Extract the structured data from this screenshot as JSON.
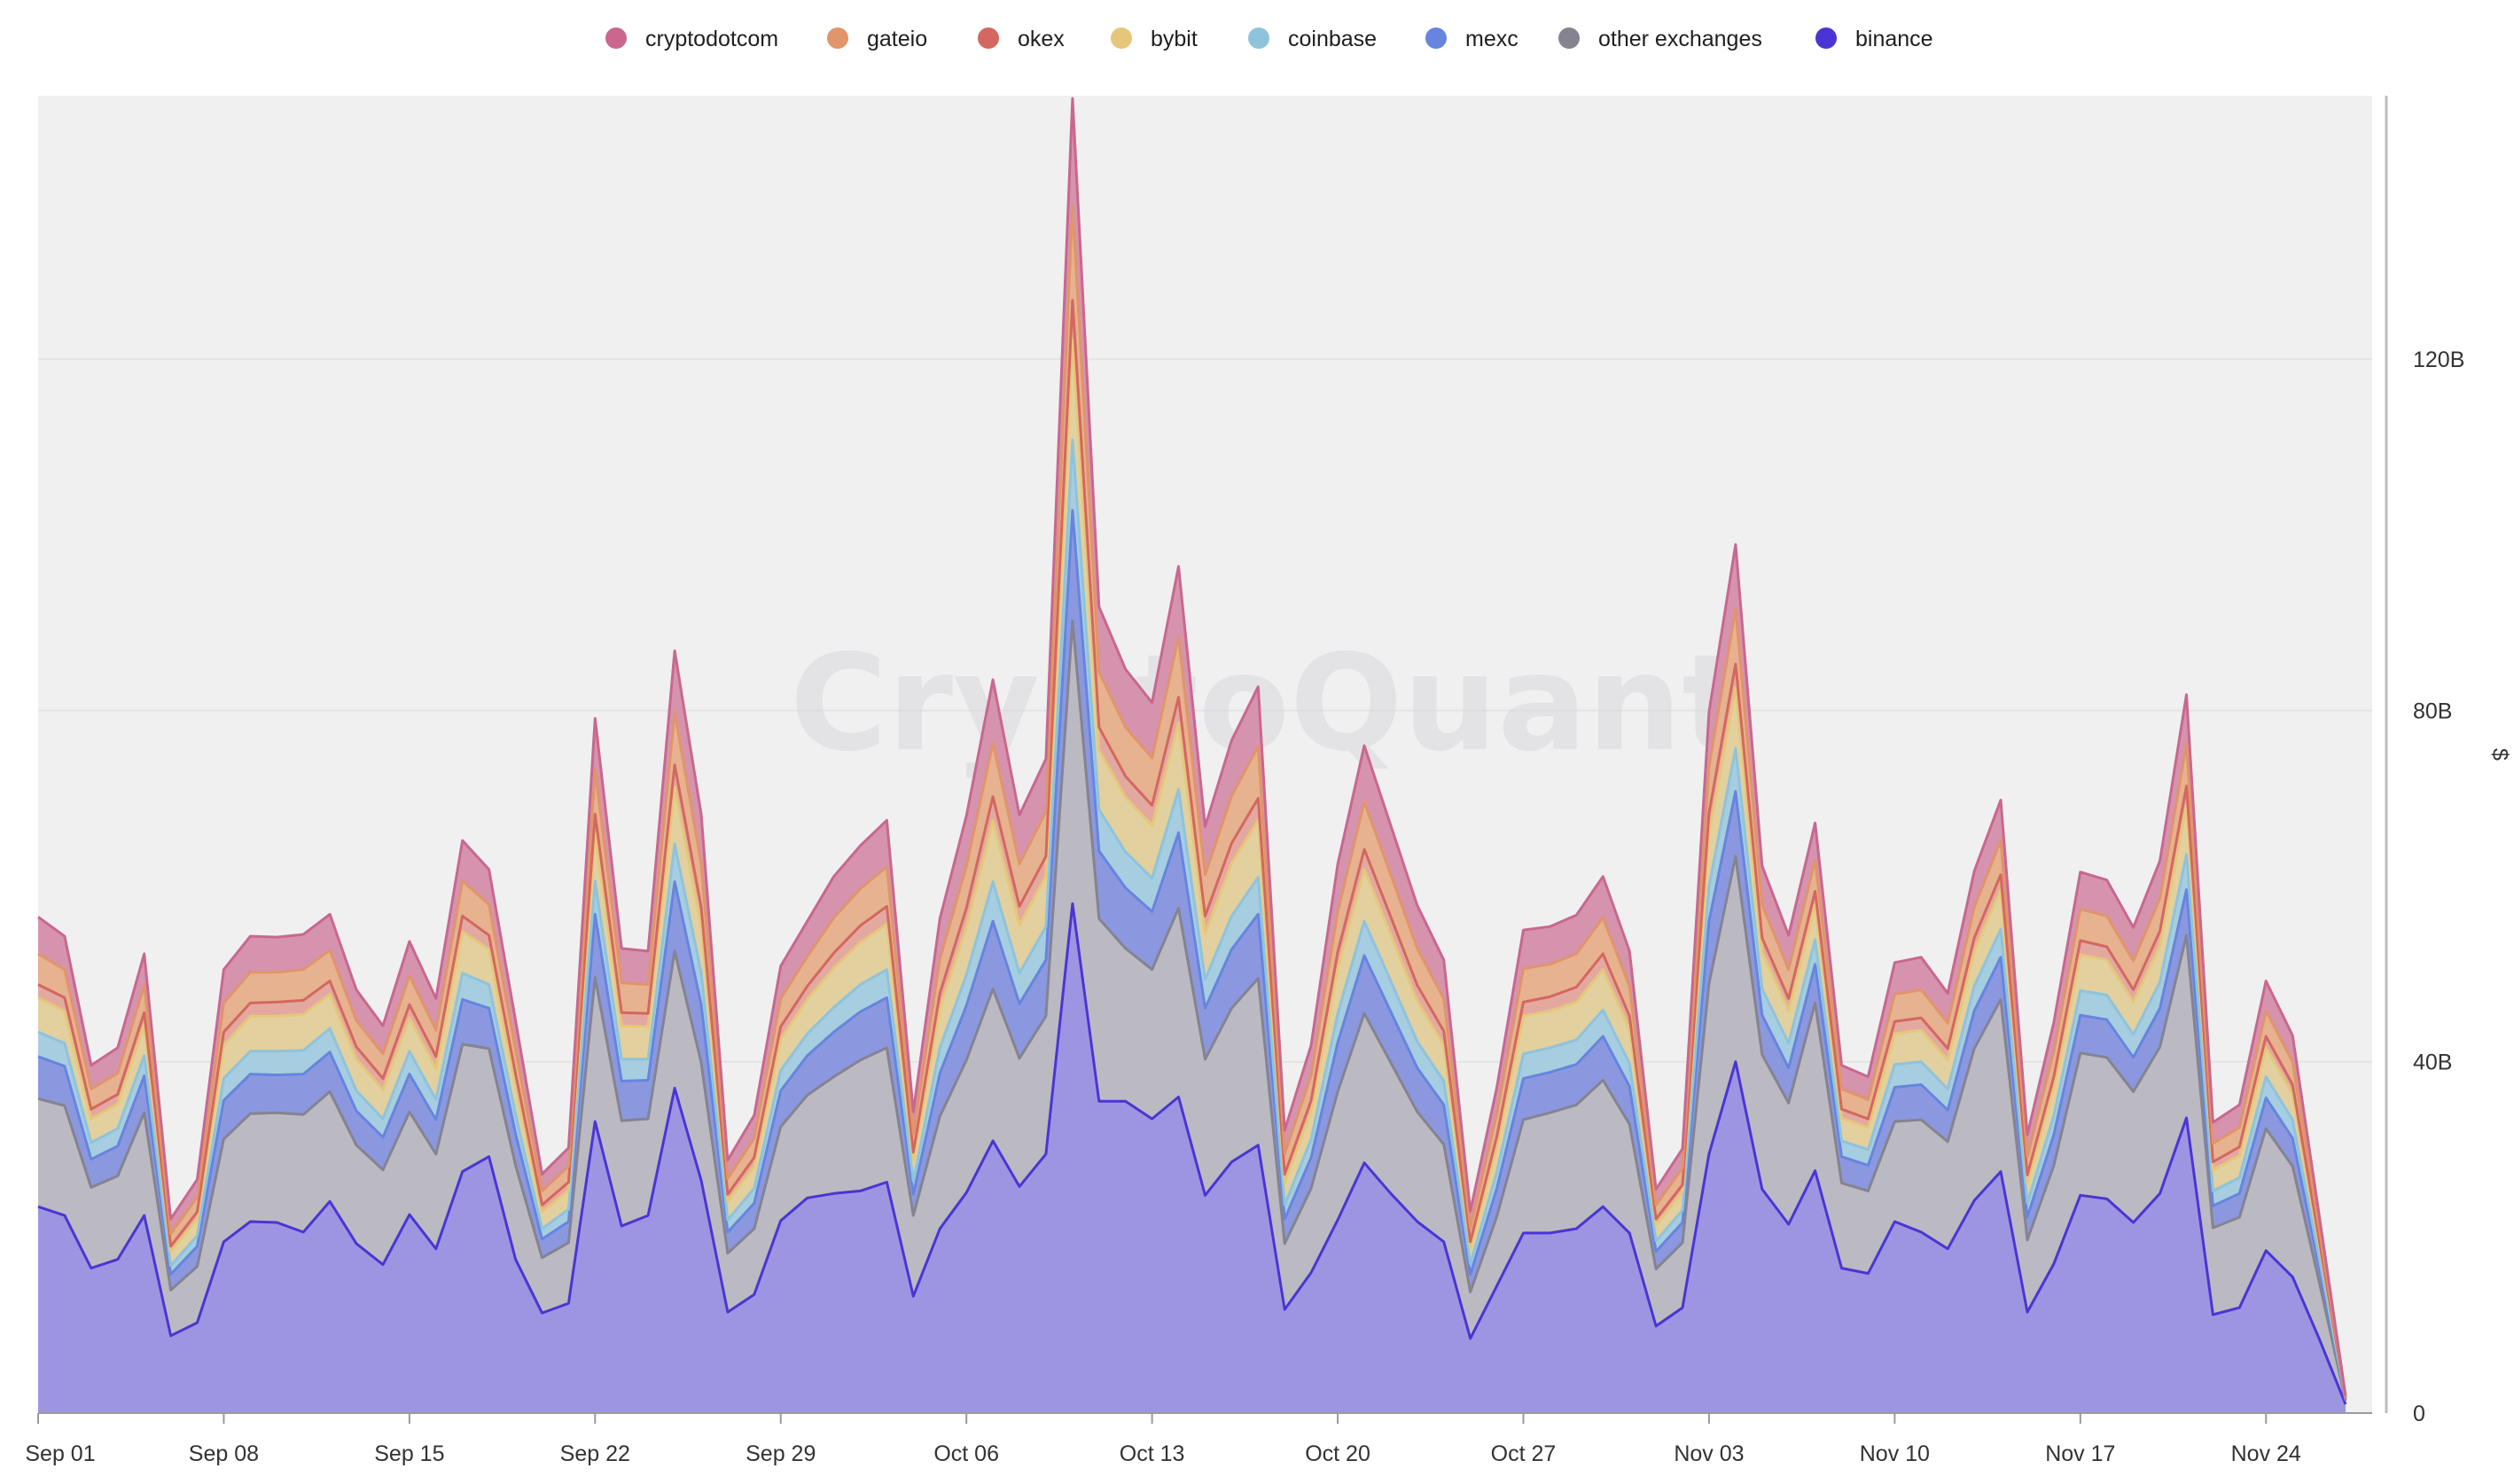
{
  "chart_data": {
    "type": "area",
    "stacked": true,
    "watermark": "CryptoQuant",
    "ylabel": "$",
    "ylim": [
      0,
      150
    ],
    "y_ticks": [
      {
        "value": 0,
        "label": "0"
      },
      {
        "value": 40,
        "label": "40B"
      },
      {
        "value": 80,
        "label": "80B"
      },
      {
        "value": 120,
        "label": "120B"
      }
    ],
    "x_ticks": [
      {
        "index": 0,
        "label": "Sep 01"
      },
      {
        "index": 7,
        "label": "Sep 08"
      },
      {
        "index": 14,
        "label": "Sep 15"
      },
      {
        "index": 21,
        "label": "Sep 22"
      },
      {
        "index": 28,
        "label": "Sep 29"
      },
      {
        "index": 35,
        "label": "Oct 06"
      },
      {
        "index": 42,
        "label": "Oct 13"
      },
      {
        "index": 49,
        "label": "Oct 20"
      },
      {
        "index": 56,
        "label": "Oct 27"
      },
      {
        "index": 63,
        "label": "Nov 03"
      },
      {
        "index": 70,
        "label": "Nov 10"
      },
      {
        "index": 77,
        "label": "Nov 17"
      },
      {
        "index": 84,
        "label": "Nov 24"
      }
    ],
    "num_points": 88,
    "legend": [
      {
        "name": "cryptodotcom",
        "color": "#c9678f"
      },
      {
        "name": "gateio",
        "color": "#e0956a"
      },
      {
        "name": "okex",
        "color": "#d4675f"
      },
      {
        "name": "bybit",
        "color": "#e6c77a"
      },
      {
        "name": "coinbase",
        "color": "#8ec3dc"
      },
      {
        "name": "mexc",
        "color": "#6585de"
      },
      {
        "name": "other exchanges",
        "color": "#85838f"
      },
      {
        "name": "binance",
        "color": "#4a35d4"
      }
    ],
    "stack_order": [
      "binance",
      "other exchanges",
      "mexc",
      "coinbase",
      "bybit",
      "okex",
      "gateio",
      "cryptodotcom"
    ],
    "series": [
      {
        "name": "binance",
        "color": "#4a35d4",
        "fill": "#9e95e2",
        "values": [
          23.5,
          22.5,
          16.5,
          17.5,
          22.5,
          8.8,
          10.3,
          19.5,
          21.8,
          21.7,
          20.6,
          24.1,
          19.3,
          16.9,
          22.6,
          18.7,
          27.5,
          29.2,
          17.5,
          11.4,
          12.5,
          33.2,
          21.3,
          22.5,
          37,
          26.5,
          11.5,
          13.5,
          21.9,
          24.5,
          25,
          25.3,
          26.3,
          13.3,
          21,
          25.1,
          31,
          25.8,
          29.5,
          58,
          35.5,
          35.5,
          33.5,
          36,
          24.8,
          28.6,
          30.5,
          11.8,
          16,
          22,
          28.5,
          25,
          21.8,
          19.5,
          8.5,
          14.5,
          20.5,
          20.5,
          21,
          23.5,
          20.5,
          9.9,
          12,
          29.5,
          40,
          25.5,
          21.5,
          27.6,
          16.5,
          15.9,
          21.8,
          20.6,
          18.7,
          24.2,
          27.5,
          11.5,
          17,
          24.8,
          24.4,
          21.7,
          25,
          33.6,
          11.2,
          12,
          18.5,
          15.5,
          8.5,
          1
        ]
      },
      {
        "name": "other exchanges",
        "color": "#85838f",
        "fill": "#bbb9c2",
        "values": [
          12.3,
          12.5,
          9.2,
          9.5,
          11.7,
          5.2,
          6.4,
          11.7,
          12.3,
          12.5,
          13.4,
          12.5,
          11.2,
          10.8,
          11.7,
          10.8,
          14.5,
          12.3,
          10.7,
          6.3,
          6.9,
          16.4,
          12,
          11,
          15.6,
          13.4,
          6.7,
          7.5,
          10.7,
          11.7,
          13.3,
          14.9,
          15.3,
          9.2,
          12.8,
          15.1,
          17.3,
          14.6,
          15.7,
          32.2,
          20.8,
          17.4,
          17,
          21.5,
          15.5,
          17.5,
          19,
          7.5,
          9.6,
          14.6,
          17,
          14.9,
          12.5,
          11.1,
          5.3,
          7.9,
          12.9,
          13.7,
          14.1,
          14.4,
          12.4,
          6.5,
          7.4,
          19.4,
          23.4,
          15.3,
          13.8,
          19.1,
          9.7,
          9.4,
          11.4,
          12.8,
          12.2,
          17.3,
          19.6,
          8.2,
          11.2,
          16.2,
          16.1,
          14.9,
          16.7,
          20.8,
          9.9,
          10.3,
          13.9,
          12.6,
          6.5,
          0.4
        ]
      },
      {
        "name": "mexc",
        "color": "#6585de",
        "fill": "#8b98e0",
        "values": [
          4.8,
          4.5,
          3.2,
          3.4,
          4.2,
          1.8,
          2.3,
          4.4,
          4.5,
          4.3,
          4.6,
          4.5,
          3.9,
          3.7,
          4.3,
          3.9,
          5.1,
          4.6,
          3.6,
          2.1,
          2.4,
          7.2,
          4.5,
          4.4,
          7.9,
          6.6,
          2.4,
          2.9,
          4.1,
          4.5,
          5.1,
          5.5,
          5.7,
          2.4,
          4.9,
          6.2,
          7.7,
          6.2,
          6.4,
          12.6,
          7.7,
          6.9,
          6.6,
          8.6,
          5.8,
          6.7,
          7.3,
          2.8,
          3.5,
          5.6,
          6.6,
          5.8,
          5,
          4.5,
          2,
          3.2,
          4.7,
          4.6,
          4.6,
          5,
          4.3,
          2,
          2.3,
          7.1,
          7.4,
          4.5,
          4,
          4.4,
          3,
          2.9,
          3.9,
          4,
          3.6,
          4.3,
          4.8,
          2.6,
          3.5,
          4.3,
          4.3,
          3.9,
          4.4,
          5.2,
          2.5,
          2.7,
          3.5,
          3.2,
          1.6,
          0.2
        ]
      },
      {
        "name": "coinbase",
        "color": "#8ec3dc",
        "fill": "#a7cde1",
        "values": [
          2.8,
          2.6,
          1.9,
          2,
          2.3,
          1,
          1.2,
          2.5,
          2.6,
          2.7,
          2.7,
          2.7,
          2.3,
          2.1,
          2.6,
          2.3,
          3,
          2.7,
          2.2,
          1.2,
          1.4,
          3.8,
          2.5,
          2.4,
          4.3,
          3.6,
          1.4,
          1.7,
          2.3,
          2.5,
          2.8,
          3.1,
          3.2,
          1.5,
          2.9,
          3.5,
          4.5,
          3.5,
          3.8,
          8,
          4.7,
          4.1,
          3.8,
          4.9,
          3.3,
          3.8,
          4.2,
          1.6,
          2.1,
          3.3,
          3.9,
          3.5,
          3,
          2.7,
          1.2,
          1.9,
          2.8,
          2.8,
          2.8,
          3,
          2.6,
          1.2,
          1.4,
          4,
          4.9,
          3,
          2.8,
          2.8,
          1.8,
          1.8,
          2.6,
          2.6,
          2.4,
          2.8,
          3.2,
          1.6,
          2.2,
          2.8,
          2.8,
          2.6,
          3,
          4,
          1.7,
          1.8,
          2.4,
          2.1,
          1.1,
          0.1
        ]
      },
      {
        "name": "bybit",
        "color": "#e6c77a",
        "fill": "#e2d09e",
        "values": [
          3.9,
          3.7,
          2.7,
          2.8,
          3.5,
          1.6,
          1.9,
          3.8,
          4,
          4,
          4.1,
          3.9,
          3.6,
          3.3,
          3.8,
          3.5,
          4.7,
          4,
          3.3,
          1.9,
          2.2,
          5.5,
          3.8,
          3.7,
          6.5,
          5.4,
          2.1,
          2.5,
          3.6,
          3.9,
          4.5,
          4.8,
          5.2,
          2.4,
          4.5,
          5.5,
          7,
          5.5,
          5.8,
          11.5,
          6.8,
          6.2,
          6,
          7.6,
          5.2,
          6,
          6.5,
          2.5,
          3.2,
          5.1,
          5.9,
          5.3,
          4.6,
          4.1,
          1.8,
          2.9,
          4.3,
          4.2,
          4.3,
          4.6,
          3.9,
          1.8,
          2.1,
          6,
          6.9,
          4.2,
          3.7,
          4,
          2.6,
          2.5,
          3.5,
          3.6,
          3.3,
          4,
          4.5,
          2.3,
          3.2,
          4.1,
          4,
          3.7,
          4.2,
          5.6,
          2.4,
          2.5,
          3.3,
          2.9,
          1.5,
          0.1
        ]
      },
      {
        "name": "okex",
        "color": "#d4675f",
        "fill": "#e3a9a0",
        "values": [
          1.5,
          1.5,
          1.1,
          1.1,
          1.4,
          0.6,
          0.8,
          1.5,
          1.5,
          1.6,
          1.6,
          1.5,
          1.4,
          1.3,
          1.5,
          1.4,
          1.8,
          1.6,
          1.3,
          0.8,
          0.9,
          2.1,
          1.5,
          1.5,
          2.5,
          2.1,
          0.8,
          1,
          1.4,
          1.5,
          1.7,
          1.9,
          2,
          0.9,
          1.7,
          2.1,
          2.7,
          2.1,
          2.2,
          4.4,
          2.6,
          2.4,
          2.3,
          2.9,
          2,
          2.3,
          2.5,
          1,
          1.2,
          1.9,
          2.3,
          2,
          1.8,
          1.6,
          0.7,
          1.1,
          1.6,
          1.6,
          1.7,
          1.8,
          1.5,
          0.7,
          0.8,
          2.3,
          2.7,
          1.6,
          1.4,
          1.5,
          1,
          1,
          1.4,
          1.4,
          1.3,
          1.5,
          1.7,
          0.9,
          1.2,
          1.6,
          1.5,
          1.4,
          1.6,
          2.2,
          0.9,
          1,
          1.3,
          1.1,
          0.6,
          0
        ]
      },
      {
        "name": "gateio",
        "color": "#e0956a",
        "fill": "#e7b28f",
        "values": [
          3.5,
          3.2,
          2.3,
          2.4,
          3.1,
          1.4,
          1.7,
          3.3,
          3.5,
          3.4,
          3.5,
          3.5,
          3,
          2.8,
          3.3,
          3,
          4,
          3.5,
          2.8,
          1.6,
          1.8,
          5,
          3.4,
          3.3,
          6,
          4.9,
          1.8,
          2.2,
          3.2,
          3.4,
          4,
          4.2,
          4.5,
          2.1,
          3.9,
          4.8,
          6.1,
          4.8,
          5.1,
          10.8,
          6.3,
          5.6,
          5.4,
          6.9,
          4.7,
          5.4,
          5.9,
          2.3,
          2.9,
          4.6,
          5.4,
          4.8,
          4.2,
          3.7,
          1.6,
          2.6,
          3.8,
          3.7,
          3.8,
          4.1,
          3.4,
          1.6,
          1.9,
          5.3,
          6.3,
          3.8,
          3.3,
          3.6,
          2.3,
          2.2,
          3.1,
          3.2,
          2.9,
          3.5,
          3.9,
          2.1,
          2.9,
          3.6,
          3.5,
          3.3,
          3.7,
          4.8,
          2.1,
          2.2,
          2.9,
          2.6,
          1.3,
          0.1
        ]
      },
      {
        "name": "cryptodotcom",
        "color": "#c9678f",
        "fill": "#d693ae",
        "values": [
          4.2,
          3.8,
          2.7,
          2.9,
          3.6,
          1.7,
          2,
          3.8,
          4.1,
          4,
          4,
          4.1,
          3.5,
          3.2,
          3.9,
          3.6,
          4.6,
          4,
          3.3,
          1.9,
          2.1,
          5.9,
          3.9,
          3.8,
          7,
          5.7,
          2.1,
          2.6,
          3.7,
          4,
          4.7,
          4.9,
          5.3,
          2.5,
          4.6,
          5.7,
          7.2,
          5.6,
          6,
          12.2,
          7.4,
          6.6,
          6.3,
          8,
          5.5,
          6.3,
          6.8,
          2.7,
          3.4,
          5.4,
          6.4,
          5.6,
          4.9,
          4.4,
          1.9,
          3,
          4.4,
          4.3,
          4.4,
          4.7,
          4,
          1.8,
          2.2,
          6.2,
          7.3,
          4.4,
          3.9,
          4.2,
          2.7,
          2.6,
          3.6,
          3.7,
          3.4,
          4.1,
          4.6,
          2.5,
          3.3,
          4.2,
          4.1,
          3.8,
          4.3,
          5.6,
          2.4,
          2.6,
          3.4,
          3,
          1.5,
          0.1
        ]
      }
    ]
  }
}
